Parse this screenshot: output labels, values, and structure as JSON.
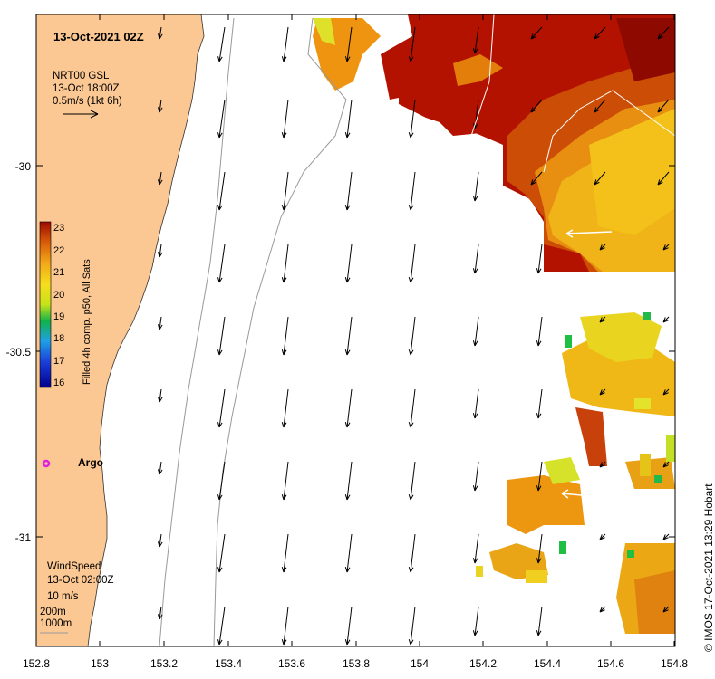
{
  "map": {
    "timestamp": "13-Oct-2021 02Z",
    "source_lines": [
      "NRT00 GSL",
      "13-Oct 18:00Z",
      "0.5m/s (1kt 6h)"
    ],
    "wind_lines": [
      "WindSpeed",
      "13-Oct 02:00Z",
      "10 m/s"
    ],
    "isobath_lines": [
      "200m",
      "1000m"
    ],
    "argo_label": "Argo",
    "credit": "© IMOS 17-Oct-2021 13:29 Hobart",
    "colorbar": {
      "label": "Filled 4h comp. p50, All Sats",
      "ticks": [
        "23",
        "22",
        "21",
        "20",
        "19",
        "18",
        "17",
        "16"
      ]
    },
    "x_ticks": [
      "152.8",
      "153",
      "153.2",
      "153.4",
      "153.6",
      "153.8",
      "154",
      "154.2",
      "154.4",
      "154.6",
      "154.8"
    ],
    "y_ticks": [
      "-30",
      "-30.5",
      "-31"
    ],
    "colors": {
      "land": "#fbc792",
      "sst_hot": "#b30f00",
      "sst_orange": "#e8960c",
      "sst_yellow": "#f2d023",
      "argo": "#e020e0"
    }
  }
}
